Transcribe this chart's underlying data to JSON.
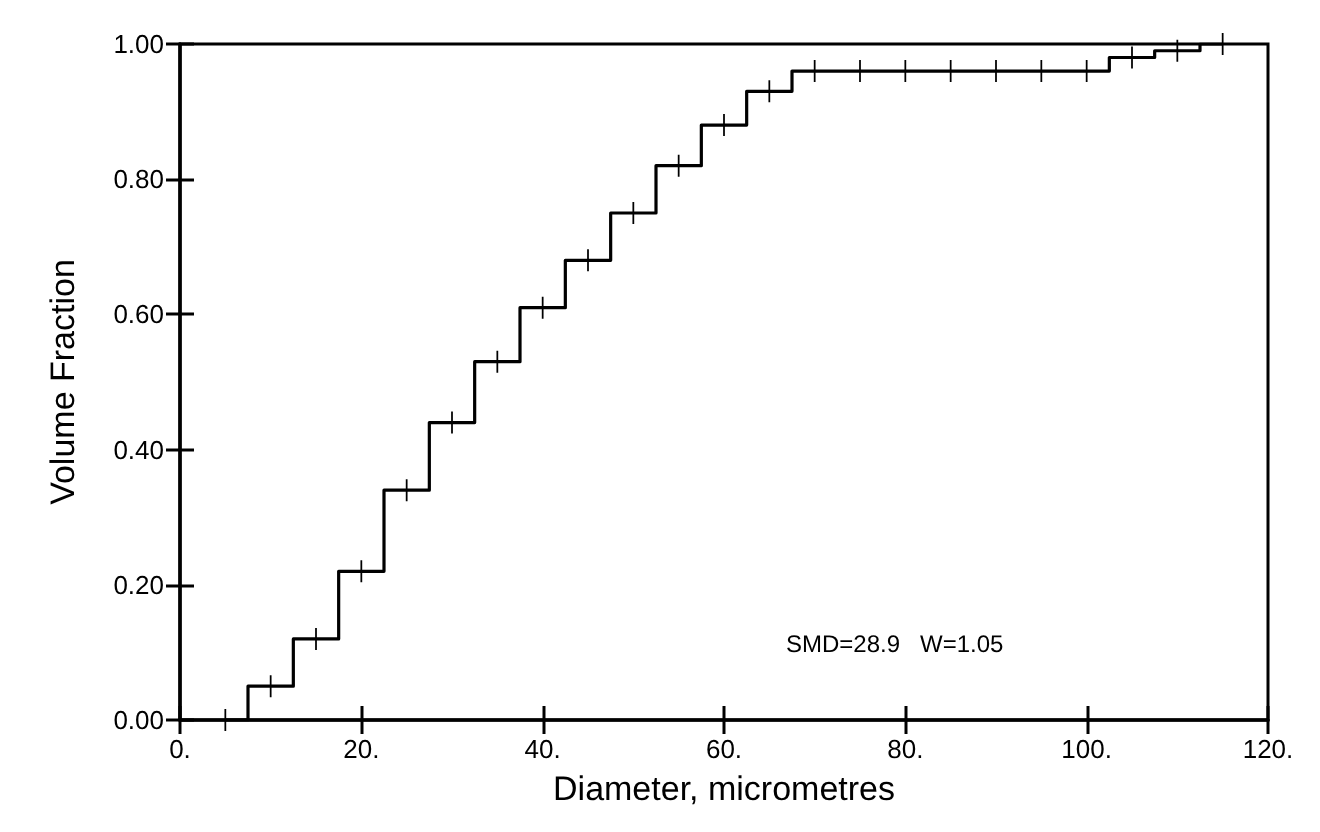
{
  "chart_data": {
    "type": "step",
    "xlabel": "Diameter, micrometres",
    "ylabel": "Volume Fraction",
    "x": [
      5,
      10,
      15,
      20,
      25,
      30,
      35,
      40,
      45,
      50,
      55,
      60,
      65,
      70,
      75,
      80,
      85,
      90,
      95,
      100,
      105,
      110,
      115
    ],
    "series": [
      {
        "color": "#000000",
        "values": [
          0.0,
          0.05,
          0.12,
          0.22,
          0.34,
          0.44,
          0.53,
          0.61,
          0.68,
          0.75,
          0.82,
          0.88,
          0.93,
          0.96,
          0.96,
          0.96,
          0.96,
          0.96,
          0.96,
          0.96,
          0.98,
          0.99,
          1.0
        ]
      }
    ],
    "marker": "cross",
    "xlim": [
      0,
      120
    ],
    "ylim": [
      0,
      1
    ],
    "xticks": [
      {
        "value": 0,
        "label": "0."
      },
      {
        "value": 20,
        "label": "20."
      },
      {
        "value": 40,
        "label": "40."
      },
      {
        "value": 60,
        "label": "60."
      },
      {
        "value": 80,
        "label": "80."
      },
      {
        "value": 100,
        "label": "100."
      },
      {
        "value": 120,
        "label": "120."
      }
    ],
    "yticks": [
      {
        "value": 0,
        "label": "0.00"
      },
      {
        "value": 0.2,
        "label": "0.20"
      },
      {
        "value": 0.4,
        "label": "0.40"
      },
      {
        "value": 0.6,
        "label": "0.60"
      },
      {
        "value": 0.8,
        "label": "0.80"
      },
      {
        "value": 1,
        "label": "1.00"
      }
    ],
    "annotations": [
      "SMD=28.9   W=1.05"
    ]
  }
}
